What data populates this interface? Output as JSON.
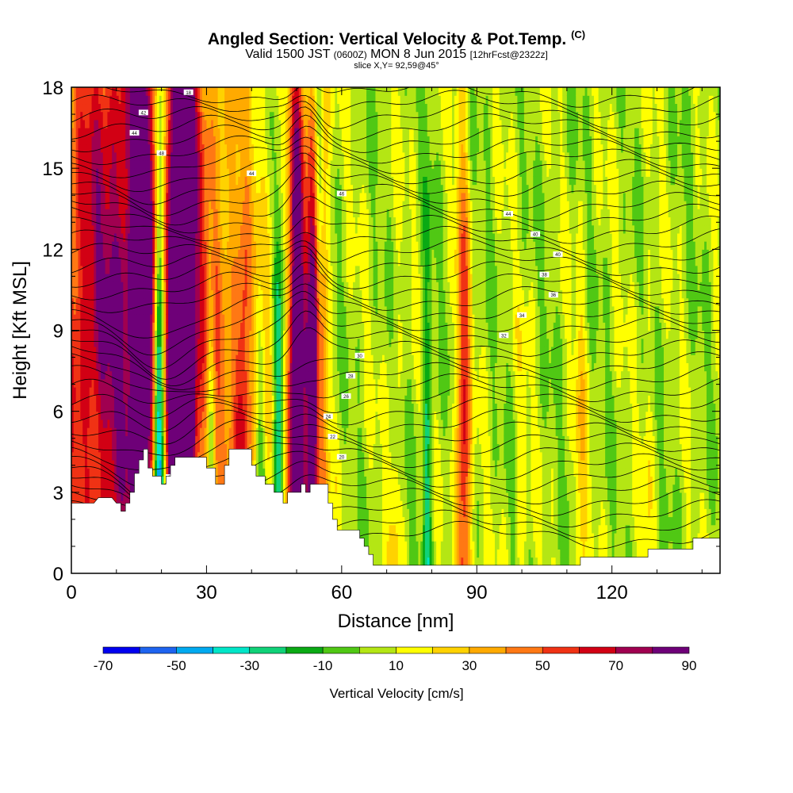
{
  "title": {
    "main": "Angled Section: Vertical Velocity & Pot.Temp.",
    "main_unit": "(C)",
    "valid_prefix": "Valid 1500 JST",
    "valid_utc": "(0600Z)",
    "valid_date": "MON 8 Jun 2015",
    "forecast": "[12hrFcst@2322z]",
    "slice": "slice X,Y= 92,59@45°"
  },
  "chart_data": {
    "type": "heatmap",
    "xlabel": "Distance [nm]",
    "ylabel": "Height [Kft MSL]",
    "xlim": [
      0,
      144
    ],
    "ylim": [
      0,
      18
    ],
    "x_ticks": [
      0,
      30,
      60,
      90,
      120
    ],
    "y_ticks": [
      0,
      3,
      6,
      9,
      12,
      15,
      18
    ],
    "colorbar": {
      "label": "Vertical Velocity [cm/s]",
      "tick_labels": [
        -70,
        -50,
        -30,
        -10,
        10,
        30,
        50,
        70,
        90
      ],
      "bins": [
        -70,
        -60,
        -50,
        -40,
        -30,
        -20,
        -10,
        0,
        10,
        20,
        30,
        40,
        50,
        60,
        70,
        80,
        90
      ],
      "colors": [
        "#0000f0",
        "#1e64f0",
        "#00aaf0",
        "#00e6c8",
        "#10d278",
        "#0aaa14",
        "#50c814",
        "#b4e614",
        "#ffff00",
        "#ffd200",
        "#ffaa00",
        "#ff7814",
        "#f03214",
        "#d20014",
        "#a00050",
        "#6e0078"
      ]
    },
    "terrain": [
      [
        0,
        2.6
      ],
      [
        5,
        2.6
      ],
      [
        6,
        2.8
      ],
      [
        9,
        2.8
      ],
      [
        10,
        2.6
      ],
      [
        11,
        2.6
      ],
      [
        11,
        2.3
      ],
      [
        12,
        2.3
      ],
      [
        12,
        2.6
      ],
      [
        13,
        2.6
      ],
      [
        13,
        3.0
      ],
      [
        14,
        3.0
      ],
      [
        14,
        3.7
      ],
      [
        15,
        3.7
      ],
      [
        15,
        4.2
      ],
      [
        16,
        4.2
      ],
      [
        16,
        4.6
      ],
      [
        17,
        4.6
      ],
      [
        17,
        3.9
      ],
      [
        18,
        3.9
      ],
      [
        18,
        3.6
      ],
      [
        20,
        3.6
      ],
      [
        20,
        3.3
      ],
      [
        21,
        3.3
      ],
      [
        21,
        3.6
      ],
      [
        22,
        3.6
      ],
      [
        22,
        4.0
      ],
      [
        23,
        4.0
      ],
      [
        23,
        4.3
      ],
      [
        30,
        4.3
      ],
      [
        30,
        3.9
      ],
      [
        32,
        3.9
      ],
      [
        32,
        3.3
      ],
      [
        34,
        3.3
      ],
      [
        34,
        4.0
      ],
      [
        35,
        4.0
      ],
      [
        35,
        4.6
      ],
      [
        40,
        4.6
      ],
      [
        40,
        4.0
      ],
      [
        41,
        4.0
      ],
      [
        41,
        3.6
      ],
      [
        43,
        3.6
      ],
      [
        43,
        3.3
      ],
      [
        45,
        3.3
      ],
      [
        45,
        3.0
      ],
      [
        47,
        3.0
      ],
      [
        47,
        2.6
      ],
      [
        48,
        2.6
      ],
      [
        48,
        3.0
      ],
      [
        51,
        3.0
      ],
      [
        51,
        3.3
      ],
      [
        52,
        3.3
      ],
      [
        52,
        3.0
      ],
      [
        53,
        3.0
      ],
      [
        53,
        3.3
      ],
      [
        57,
        3.3
      ],
      [
        57,
        2.6
      ],
      [
        58,
        2.6
      ],
      [
        58,
        2.0
      ],
      [
        59,
        2.0
      ],
      [
        59,
        1.6
      ],
      [
        64,
        1.6
      ],
      [
        64,
        1.3
      ],
      [
        65,
        1.3
      ],
      [
        65,
        1.0
      ],
      [
        66,
        1.0
      ],
      [
        66,
        0.7
      ],
      [
        67,
        0.7
      ],
      [
        67,
        0.3
      ],
      [
        113,
        0.3
      ],
      [
        113,
        0.6
      ],
      [
        128,
        0.6
      ],
      [
        128,
        0.9
      ],
      [
        138,
        0.9
      ],
      [
        138,
        1.3
      ],
      [
        144,
        1.3
      ]
    ],
    "theta_contours": {
      "labels": [
        "18",
        "42",
        "44",
        "48",
        "44",
        "46",
        "44",
        "40",
        "40",
        "38",
        "36",
        "34",
        "32",
        "30",
        "28",
        "26",
        "24",
        "22",
        "20",
        "18",
        "16",
        "14"
      ]
    }
  }
}
